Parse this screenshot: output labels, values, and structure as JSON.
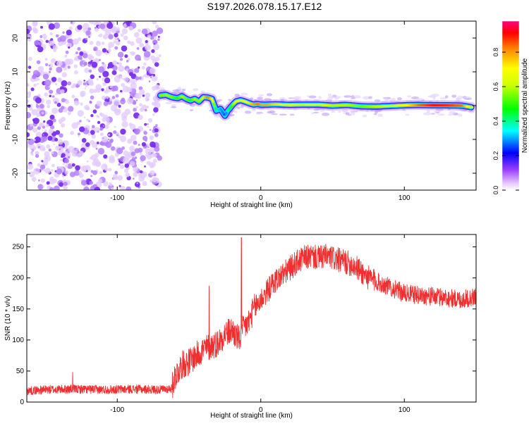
{
  "title": "S197.2026.078.15.17.E12",
  "chart_data": [
    {
      "type": "heatmap",
      "title": "S197.2026.078.15.17.E12",
      "xlabel": "Height of straight line (km)",
      "ylabel": "Frequency (Hz)",
      "xlim": [
        -163,
        150
      ],
      "ylim": [
        -25,
        25
      ],
      "xticks": [
        -100,
        0,
        100
      ],
      "yticks": [
        -20,
        -10,
        0,
        10,
        20
      ],
      "noise_region_x": [
        -163,
        -70
      ],
      "ridge": {
        "x": [
          -70,
          -66,
          -62,
          -58,
          -55,
          -52,
          -49,
          -46,
          -43,
          -40,
          -37,
          -34,
          -31,
          -28,
          -25,
          -23,
          -21,
          -19,
          -17,
          -14,
          -11,
          -8,
          -5,
          -2,
          0,
          5,
          10,
          20,
          30,
          40,
          50,
          60,
          70,
          80,
          90,
          100,
          110,
          120,
          130,
          140,
          147
        ],
        "y": [
          3,
          3.2,
          2.5,
          2.2,
          2.8,
          2.0,
          1.5,
          2.0,
          1.2,
          2.5,
          2.4,
          2.0,
          -1.5,
          -1.0,
          -3.0,
          -1.5,
          -0.5,
          0.5,
          1.3,
          1.6,
          1.2,
          0.7,
          0.3,
          0.5,
          0.3,
          0.3,
          0.4,
          0.2,
          0.3,
          0.3,
          0.0,
          0.2,
          -0.2,
          -0.3,
          -0.1,
          0.1,
          0.2,
          0.1,
          0.1,
          0.0,
          -0.5
        ],
        "amplitude": [
          0.55,
          0.6,
          0.55,
          0.5,
          0.6,
          0.55,
          0.5,
          0.6,
          0.55,
          0.75,
          0.85,
          0.7,
          0.35,
          0.3,
          0.25,
          0.4,
          0.5,
          0.6,
          0.7,
          0.65,
          0.7,
          0.75,
          0.8,
          0.85,
          0.8,
          0.8,
          0.75,
          0.7,
          0.7,
          0.7,
          0.6,
          0.6,
          0.55,
          0.6,
          0.65,
          0.7,
          0.85,
          0.92,
          0.9,
          0.85,
          0.6
        ]
      },
      "colorbar": {
        "label": "Normalized spectral amplitude",
        "ticks": [
          0.0,
          0.2,
          0.4,
          0.6,
          0.8
        ],
        "range": [
          0,
          0.98
        ]
      }
    },
    {
      "type": "line",
      "xlabel": "Height of straight line (km)",
      "ylabel": "SNR (10 * v/v)",
      "xlim": [
        -163,
        150
      ],
      "ylim": [
        0,
        270
      ],
      "xticks": [
        -100,
        0,
        100
      ],
      "yticks": [
        0,
        50,
        100,
        150,
        200,
        250
      ],
      "series": [
        {
          "name": "SNR",
          "color": "#f03030",
          "x": [
            -163,
            -150,
            -130,
            -110,
            -90,
            -70,
            -62,
            -60,
            -55,
            -50,
            -45,
            -40,
            -35,
            -30,
            -25,
            -20,
            -15,
            -12,
            -8,
            -5,
            0,
            5,
            10,
            15,
            20,
            25,
            30,
            35,
            40,
            45,
            50,
            55,
            60,
            65,
            70,
            75,
            80,
            90,
            100,
            110,
            120,
            130,
            140,
            150
          ],
          "y": [
            18,
            20,
            21,
            20,
            21,
            20,
            22,
            40,
            60,
            65,
            75,
            85,
            90,
            95,
            110,
            115,
            100,
            120,
            130,
            150,
            165,
            180,
            195,
            205,
            215,
            225,
            232,
            235,
            232,
            235,
            232,
            228,
            225,
            220,
            210,
            200,
            195,
            185,
            175,
            172,
            170,
            168,
            165,
            170
          ]
        }
      ],
      "spikes": [
        {
          "x": -13.5,
          "y": 265
        },
        {
          "x": -36,
          "y": 187
        },
        {
          "x": -131,
          "y": 48
        }
      ]
    }
  ],
  "colors": {
    "noise_dot": "#7a3ae0",
    "snr_line": "#f03030",
    "axis": "#000000"
  }
}
